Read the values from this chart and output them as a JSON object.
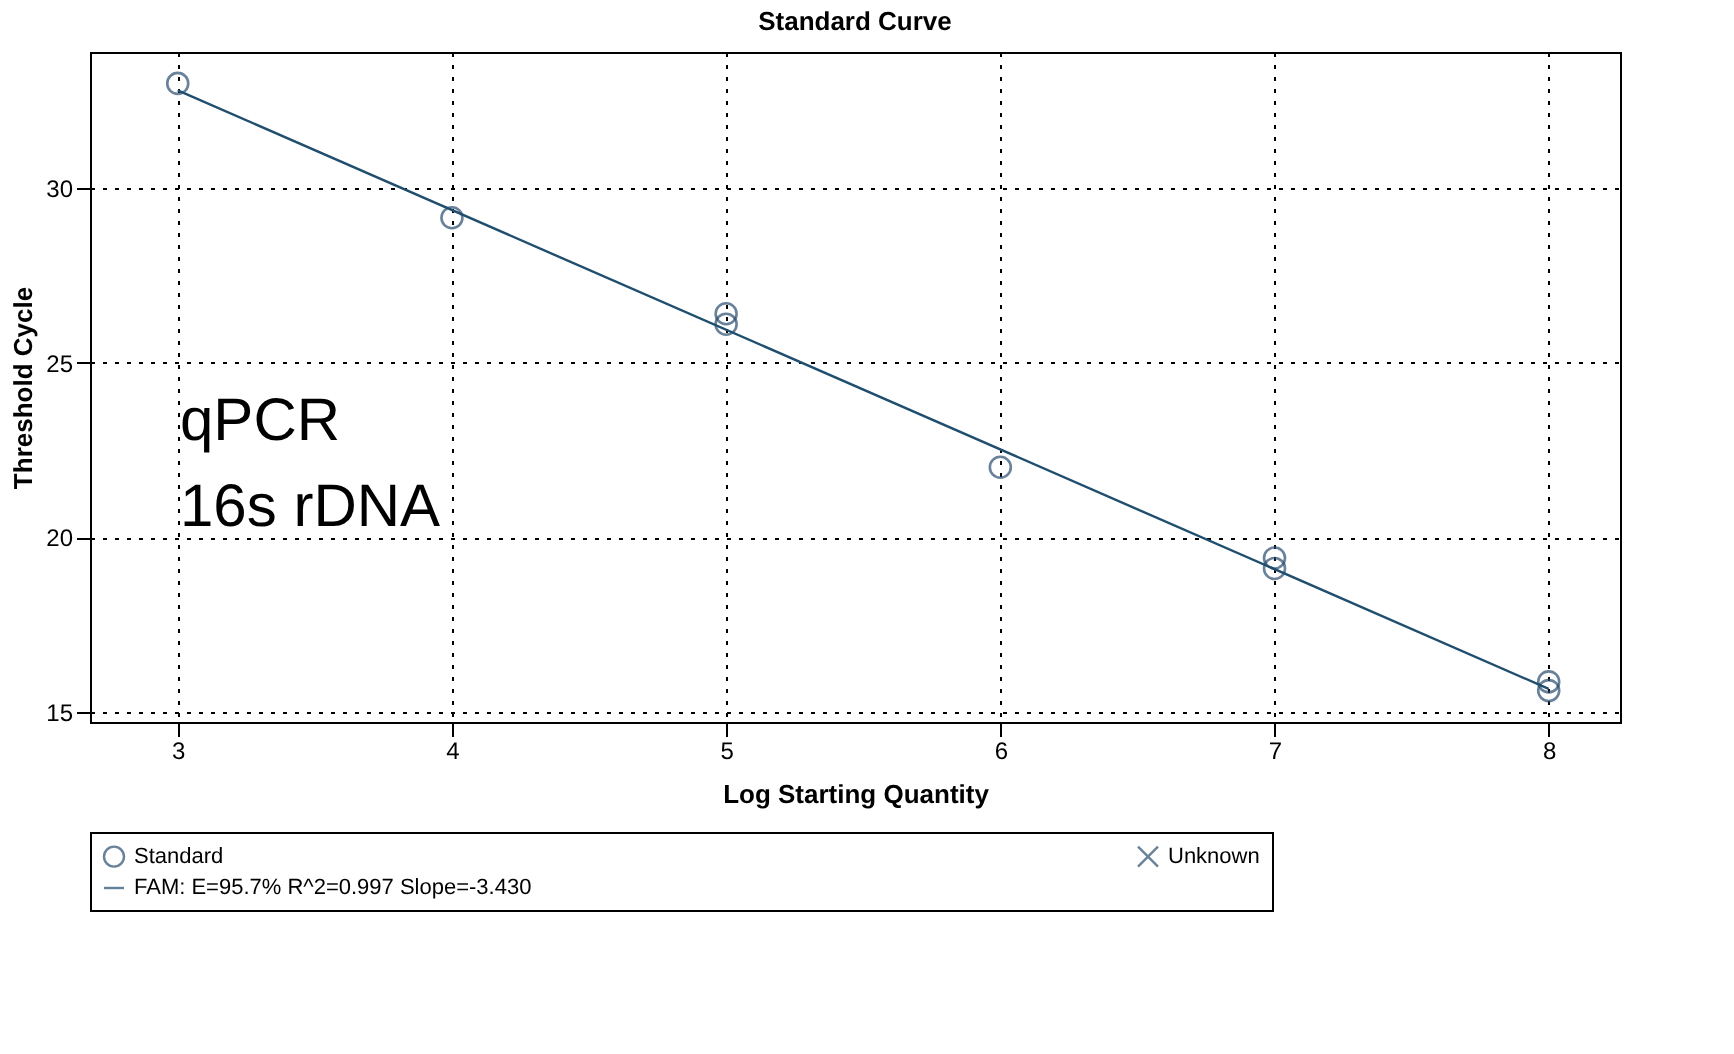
{
  "chart_data": {
    "type": "scatter",
    "title": "Standard Curve",
    "xlabel": "Log Starting Quantity",
    "ylabel": "Threshold Cycle",
    "series": [
      {
        "name": "Standard",
        "marker": "circle",
        "color": "#2a4d6e",
        "x": [
          3,
          4,
          5,
          5,
          6,
          7,
          7,
          8,
          8
        ],
        "values": [
          33.0,
          29.15,
          26.4,
          26.1,
          22.0,
          19.4,
          19.1,
          15.85,
          15.6
        ]
      },
      {
        "name": "Unknown",
        "marker": "cross",
        "color": "#2a4d6e"
      },
      {
        "name": "FAM: E=95.7% R^2=0.997 Slope=-3.430",
        "type": "line",
        "marker": "none",
        "color": "#1f4e6e",
        "x": [
          3,
          8
        ],
        "values": [
          32.8,
          15.65
        ]
      }
    ],
    "xlim": [
      2.68,
      8.26
    ],
    "xticks": [
      3,
      4,
      5,
      6,
      7,
      8
    ],
    "ylim": [
      14.7,
      33.9
    ],
    "yticks": [
      15,
      20,
      25,
      30
    ],
    "grid": true,
    "legend": "bottom",
    "annotations": [
      "qPCR",
      "16s rDNA"
    ]
  }
}
